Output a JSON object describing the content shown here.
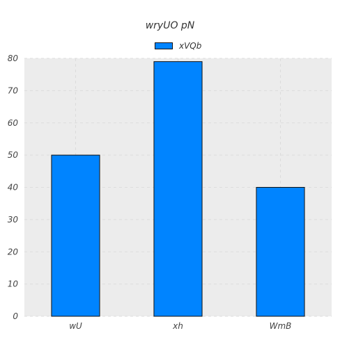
{
  "chart_data": {
    "type": "bar",
    "title": "wryUO pN",
    "xlabel": "",
    "ylabel": "",
    "categories": [
      "wU",
      "xh",
      "WmB"
    ],
    "series": [
      {
        "name": "xVQb",
        "values": [
          50,
          79,
          40
        ]
      }
    ],
    "ylim": [
      0,
      80
    ],
    "yticks": [
      0,
      10,
      20,
      30,
      40,
      50,
      60,
      70,
      80
    ],
    "grid": true,
    "legend": "top-center",
    "colors": {
      "bar": "#0084ff",
      "bar_edge": "#111111",
      "plot_background": "#ececec",
      "grid": "#dcdcdc"
    }
  }
}
